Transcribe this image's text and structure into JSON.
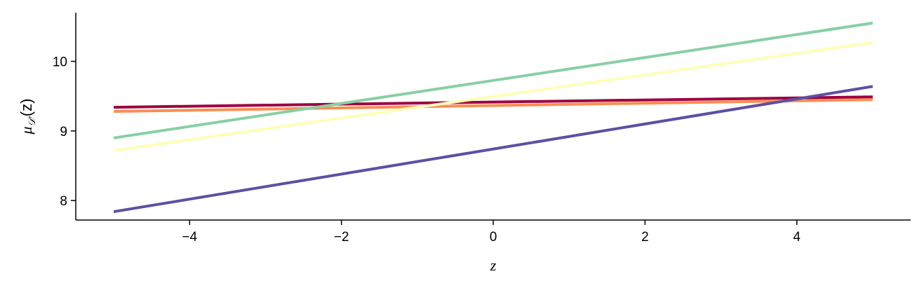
{
  "chart_data": {
    "type": "line",
    "title": "",
    "xlabel": "z",
    "ylabel": "μ",
    "ylabel_sub": "𝒟'",
    "ylabel_arg": "(z)",
    "xlim": [
      -5.5,
      5.5
    ],
    "ylim": [
      7.72,
      10.7
    ],
    "xticks": [
      -4,
      -2,
      0,
      2,
      4
    ],
    "xtick_labels": [
      "−4",
      "−2",
      "0",
      "2",
      "4"
    ],
    "yticks": [
      8,
      9,
      10
    ],
    "ytick_labels": [
      "8",
      "9",
      "10"
    ],
    "grid": false,
    "legend": "none",
    "series": [
      {
        "color": "#9e0142",
        "x": [
          -5,
          5
        ],
        "y": [
          9.34,
          9.49
        ]
      },
      {
        "color": "#f98e52",
        "x": [
          -5,
          5
        ],
        "y": [
          9.28,
          9.45
        ]
      },
      {
        "color": "#88cfa4",
        "x": [
          -5,
          5
        ],
        "y": [
          8.9,
          10.55
        ]
      },
      {
        "color": "#fefeb8",
        "x": [
          -5,
          5
        ],
        "y": [
          8.72,
          10.27
        ]
      },
      {
        "color": "#5e4fa2",
        "x": [
          -5,
          5
        ],
        "y": [
          7.84,
          9.64
        ]
      }
    ]
  }
}
